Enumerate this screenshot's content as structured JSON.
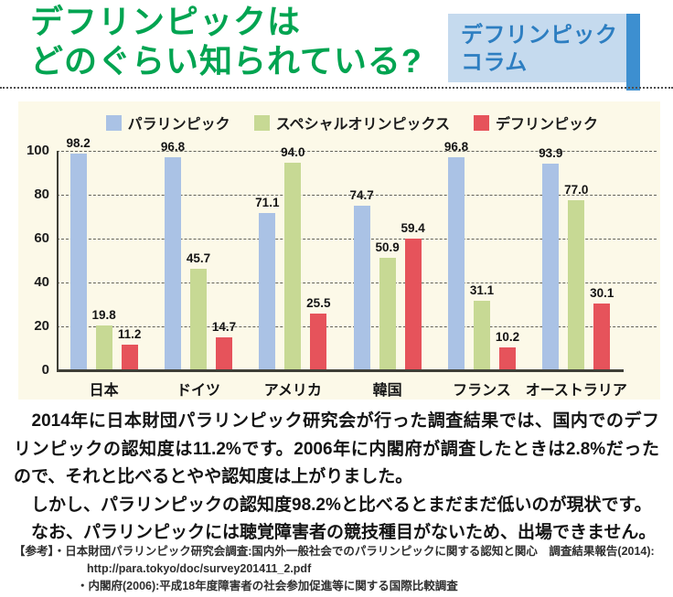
{
  "header": {
    "title_line1": "デフリンピックは",
    "title_line2": "どのぐらい知られている?",
    "title_color": "#00a451",
    "badge": {
      "line1": "デフリンピック",
      "line2": "コラム",
      "bg_color": "#c5daee",
      "text_color": "#2d7ec1",
      "accent_color": "#3d8fd0"
    }
  },
  "chart_data": {
    "type": "bar",
    "categories": [
      "日本",
      "ドイツ",
      "アメリカ",
      "韓国",
      "フランス",
      "オーストラリア"
    ],
    "series": [
      {
        "name": "パラリンピック",
        "color": "#aac2e5",
        "values": [
          98.2,
          96.8,
          71.1,
          74.7,
          96.8,
          93.9
        ],
        "value_labels": [
          "98.2",
          "96.8",
          "71.1",
          "74.7",
          "96.8",
          "93.9"
        ]
      },
      {
        "name": "スペシャルオリンピックス",
        "color": "#c7d994",
        "values": [
          19.8,
          45.7,
          94.0,
          50.9,
          31.1,
          77.0
        ],
        "value_labels": [
          "19.8",
          "45.7",
          "94.0",
          "50.9",
          "31.1",
          "77.0"
        ]
      },
      {
        "name": "デフリンピック",
        "color": "#e6535b",
        "values": [
          11.2,
          14.7,
          25.5,
          59.4,
          10.2,
          30.1
        ],
        "value_labels": [
          "11.2",
          "14.7",
          "25.5",
          "59.4",
          "10.2",
          "30.1"
        ]
      }
    ],
    "ylim": [
      0,
      100
    ],
    "yticks": [
      0,
      20,
      40,
      60,
      80,
      100
    ],
    "grid": "horizontal-dashed",
    "legend_position": "top-right",
    "plot_background": "#fcf9e8",
    "axis_color": "#3f3f37",
    "gridline_color": "#62625a"
  },
  "body": {
    "paragraphs": [
      "　2014年に日本財団パラリンピック研究会が行った調査結果では、国内でのデフリンピックの認知度は11.2%です。2006年に内閣府が調査したときは2.8%だったので、それと比べるとやや認知度は上がりました。",
      "　しかし、パラリンピックの認知度98.2%と比べるとまだまだ低いのが現状です。",
      "　なお、パラリンピックには聴覚障害者の競技種目がないため、出場できません。"
    ]
  },
  "references": {
    "line1": "【参考】・日本財団パラリンピック研究会調査:国内外一般社会でのパラリンピックに関する認知と関心　調査結果報告(2014):",
    "line2": "http://para.tokyo/doc/survey201411_2.pdf",
    "line3": "・内閣府(2006):平成18年度障害者の社会参加促進等に関する国際比較調査"
  }
}
